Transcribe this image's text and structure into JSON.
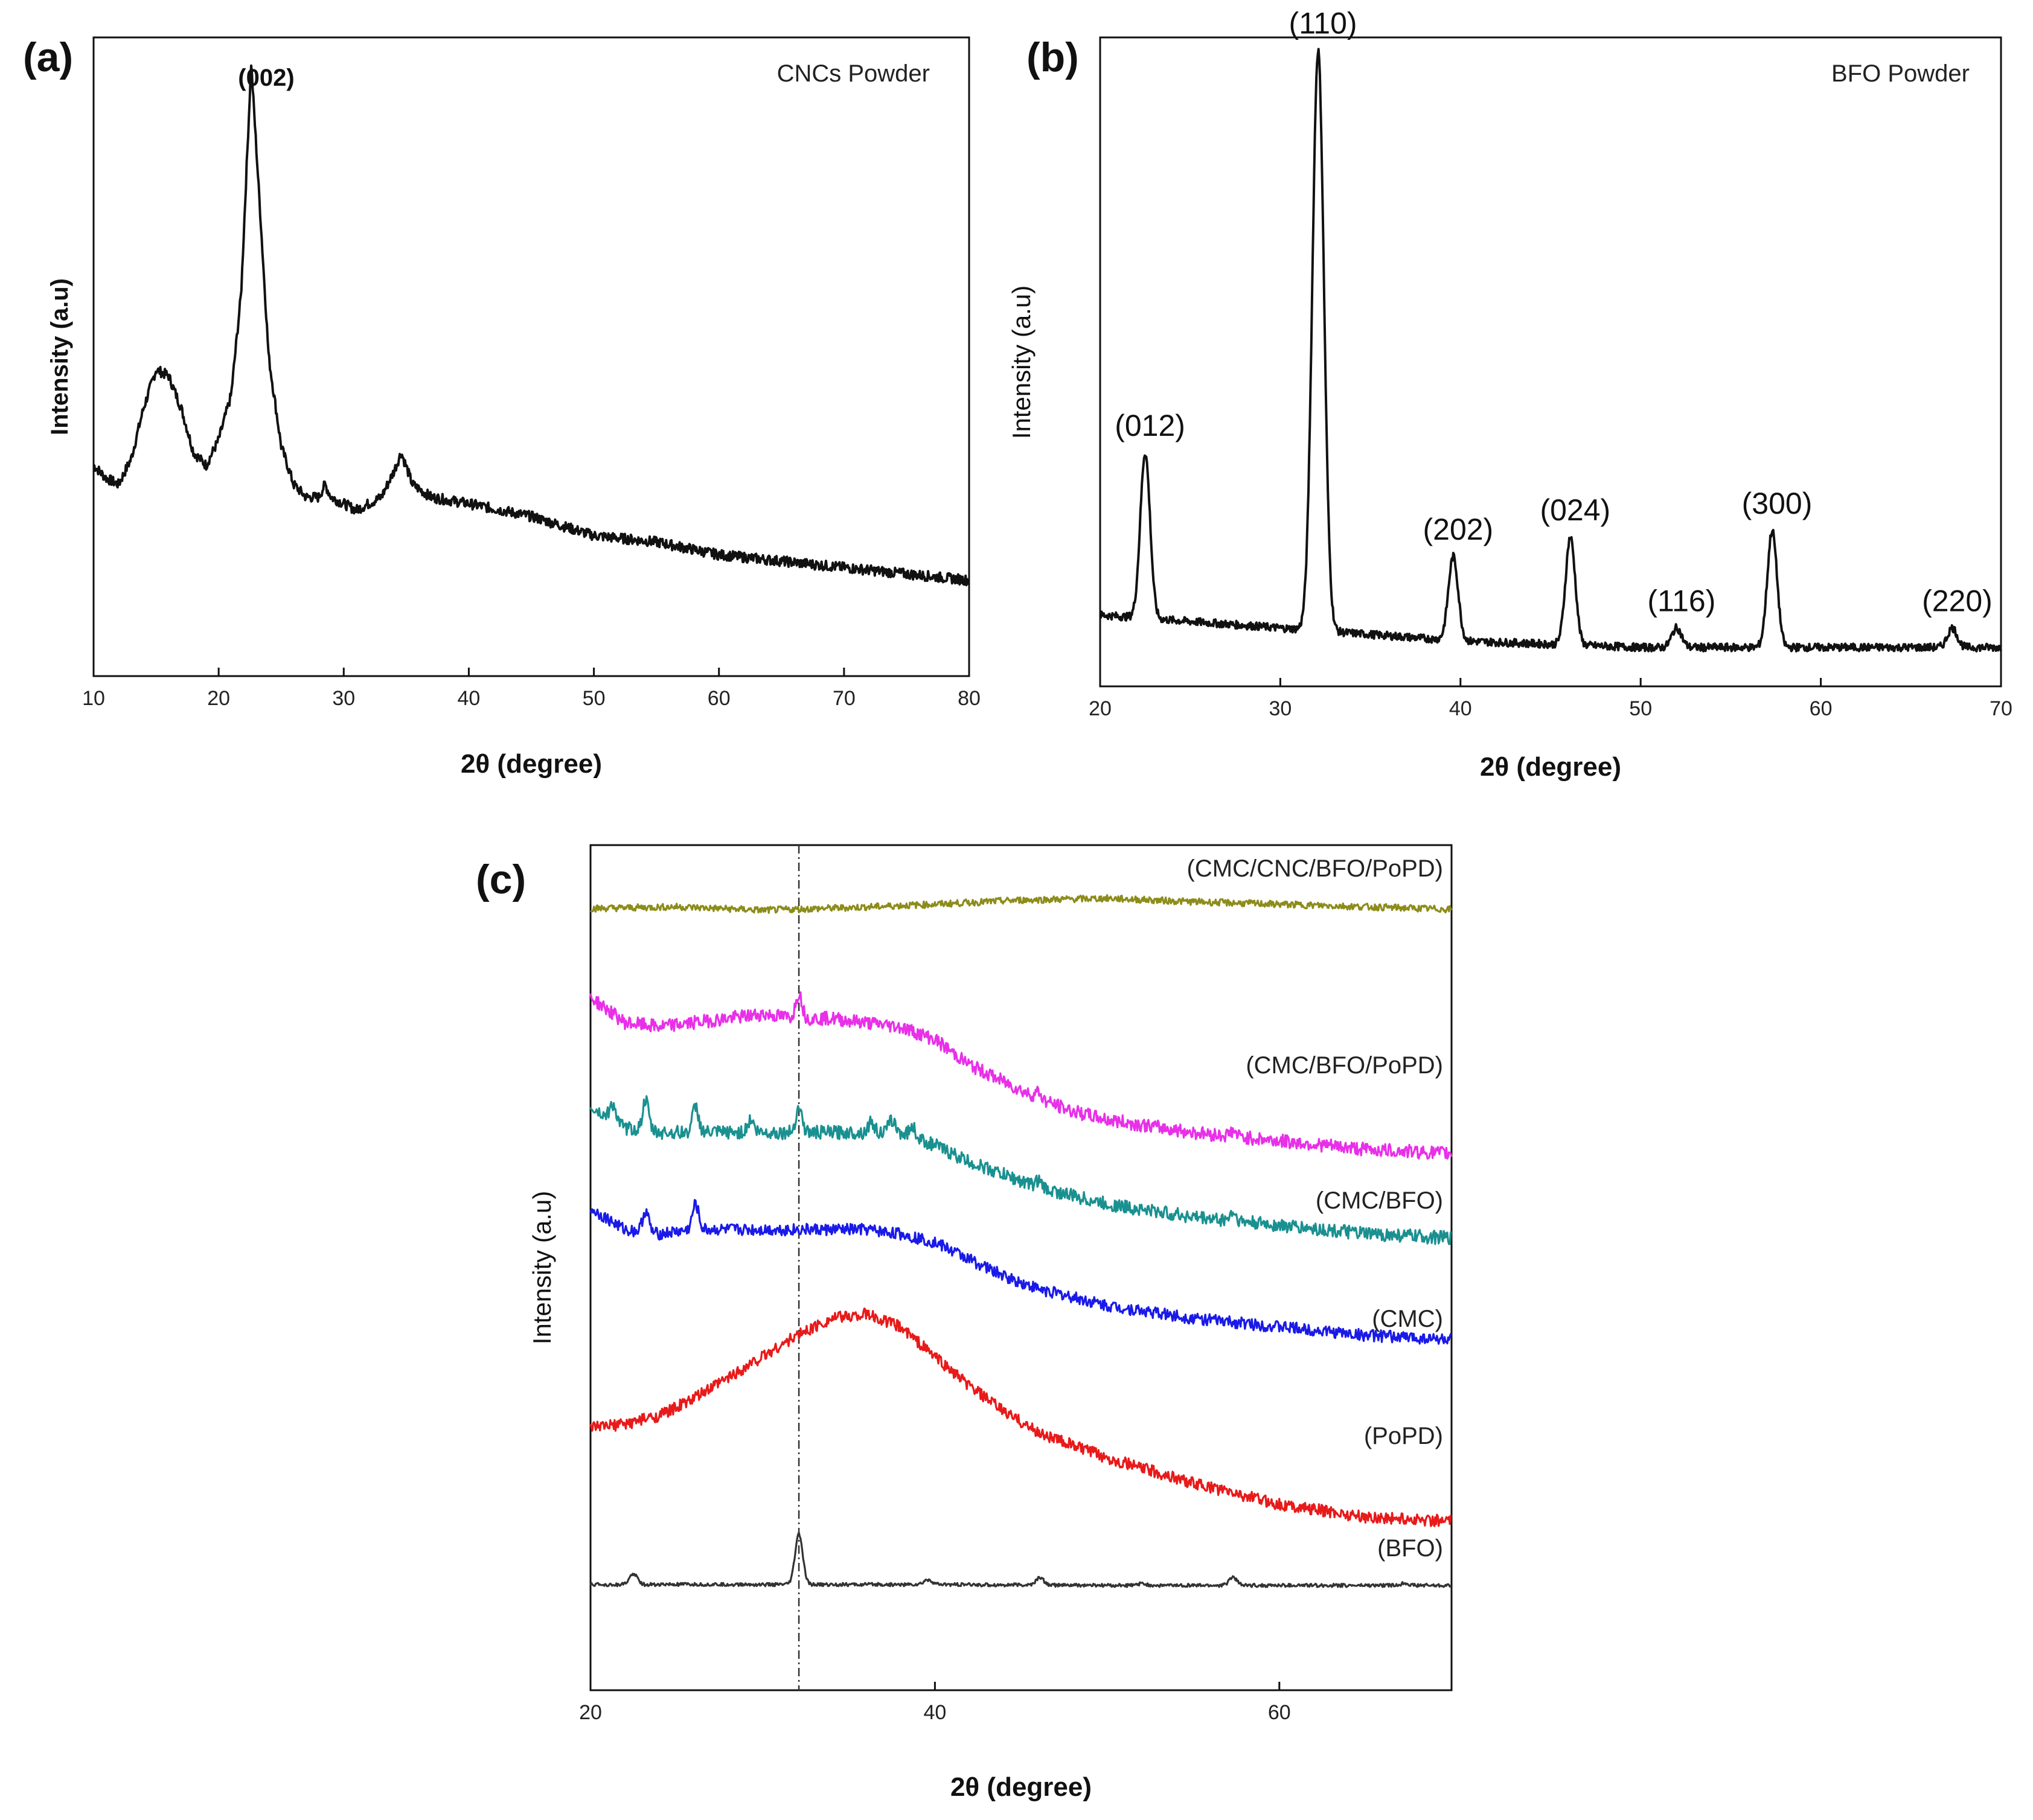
{
  "chart_data": [
    {
      "id": "a",
      "type": "line",
      "panel_label": "(a)",
      "sample_label": "CNCs Powder",
      "xlabel": "2θ (degree)",
      "ylabel": "Intensity (a.u)",
      "xlim": [
        10,
        80
      ],
      "ylim": [
        0,
        1
      ],
      "xticks": [
        10,
        20,
        30,
        40,
        50,
        60,
        70,
        80
      ],
      "color": "#111111",
      "peaks": [
        {
          "label": "(002)",
          "x": 22.6
        }
      ],
      "series": [
        {
          "name": "CNCs Powder",
          "points": [
            [
              10,
              0.33
            ],
            [
              11,
              0.31
            ],
            [
              12,
              0.3
            ],
            [
              13,
              0.34
            ],
            [
              14,
              0.42
            ],
            [
              15,
              0.48
            ],
            [
              16,
              0.47
            ],
            [
              17,
              0.42
            ],
            [
              18,
              0.35
            ],
            [
              19,
              0.33
            ],
            [
              20,
              0.37
            ],
            [
              21,
              0.44
            ],
            [
              21.8,
              0.6
            ],
            [
              22.6,
              0.96
            ],
            [
              23.4,
              0.7
            ],
            [
              24,
              0.5
            ],
            [
              25,
              0.36
            ],
            [
              26,
              0.3
            ],
            [
              27,
              0.28
            ],
            [
              28,
              0.28
            ],
            [
              28.5,
              0.3
            ],
            [
              29,
              0.28
            ],
            [
              30,
              0.27
            ],
            [
              31,
              0.26
            ],
            [
              32,
              0.27
            ],
            [
              33,
              0.28
            ],
            [
              34,
              0.32
            ],
            [
              34.6,
              0.35
            ],
            [
              35.5,
              0.3
            ],
            [
              37,
              0.28
            ],
            [
              40,
              0.27
            ],
            [
              45,
              0.25
            ],
            [
              50,
              0.22
            ],
            [
              55,
              0.21
            ],
            [
              60,
              0.19
            ],
            [
              65,
              0.18
            ],
            [
              70,
              0.17
            ],
            [
              75,
              0.16
            ],
            [
              80,
              0.15
            ]
          ]
        }
      ]
    },
    {
      "id": "b",
      "type": "line",
      "panel_label": "(b)",
      "sample_label": "BFO Powder",
      "xlabel": "2θ (degree)",
      "ylabel": "Intensity (a.u)",
      "xlim": [
        20,
        70
      ],
      "ylim": [
        0,
        1
      ],
      "xticks": [
        20,
        30,
        40,
        50,
        60,
        70
      ],
      "color": "#111111",
      "peaks": [
        {
          "label": "(012)",
          "x": 22.5,
          "y": 0.36
        },
        {
          "label": "(110)",
          "x": 32.1,
          "y": 0.98
        },
        {
          "label": "(202)",
          "x": 39.6,
          "y": 0.2
        },
        {
          "label": "(024)",
          "x": 46.1,
          "y": 0.23
        },
        {
          "label": "(116)",
          "x": 52.0,
          "y": 0.09
        },
        {
          "label": "(300)",
          "x": 57.3,
          "y": 0.24
        },
        {
          "label": "(220)",
          "x": 67.3,
          "y": 0.09
        }
      ],
      "series": [
        {
          "name": "BFO Powder",
          "baseline": [
            [
              20,
              0.11
            ],
            [
              30,
              0.09
            ],
            [
              40,
              0.07
            ],
            [
              50,
              0.06
            ],
            [
              60,
              0.06
            ],
            [
              70,
              0.06
            ]
          ]
        }
      ]
    },
    {
      "id": "c",
      "type": "line",
      "panel_label": "(c)",
      "xlabel": "2θ (degree)",
      "ylabel": "Intensity (a.u)",
      "xlim": [
        20,
        70
      ],
      "ylim": [
        0,
        1
      ],
      "xticks": [
        20,
        40,
        60
      ],
      "reference_line_x": 32.1,
      "series": [
        {
          "name": "(CMC/CNC/BFO/PoPD)",
          "color": "#8c8c1a",
          "points": [
            [
              20,
              0.925
            ],
            [
              25,
              0.927
            ],
            [
              30,
              0.923
            ],
            [
              35,
              0.926
            ],
            [
              40,
              0.93
            ],
            [
              45,
              0.935
            ],
            [
              50,
              0.937
            ],
            [
              55,
              0.933
            ],
            [
              60,
              0.93
            ],
            [
              65,
              0.927
            ],
            [
              70,
              0.924
            ]
          ],
          "spikes": []
        },
        {
          "name": "(CMC/BFO/PoPD)",
          "color": "#e830e8",
          "points": [
            [
              20,
              0.82
            ],
            [
              22,
              0.79
            ],
            [
              24,
              0.785
            ],
            [
              26,
              0.79
            ],
            [
              28,
              0.795
            ],
            [
              30,
              0.8
            ],
            [
              32,
              0.795
            ],
            [
              34,
              0.795
            ],
            [
              36,
              0.79
            ],
            [
              38,
              0.785
            ],
            [
              40,
              0.77
            ],
            [
              42,
              0.74
            ],
            [
              44,
              0.72
            ],
            [
              46,
              0.7
            ],
            [
              48,
              0.685
            ],
            [
              50,
              0.675
            ],
            [
              55,
              0.66
            ],
            [
              60,
              0.65
            ],
            [
              65,
              0.64
            ],
            [
              70,
              0.635
            ]
          ],
          "spikes": [
            [
              32.1,
              0.03
            ],
            [
              46,
              0.008
            ],
            [
              57.3,
              0.006
            ]
          ]
        },
        {
          "name": "(CMC/BFO)",
          "color": "#1a9090",
          "points": [
            [
              20,
              0.69
            ],
            [
              22,
              0.665
            ],
            [
              24,
              0.66
            ],
            [
              26,
              0.66
            ],
            [
              28,
              0.66
            ],
            [
              30,
              0.66
            ],
            [
              32,
              0.66
            ],
            [
              34,
              0.66
            ],
            [
              36,
              0.66
            ],
            [
              38,
              0.66
            ],
            [
              40,
              0.645
            ],
            [
              42,
              0.625
            ],
            [
              44,
              0.61
            ],
            [
              46,
              0.595
            ],
            [
              48,
              0.585
            ],
            [
              50,
              0.575
            ],
            [
              55,
              0.56
            ],
            [
              60,
              0.55
            ],
            [
              65,
              0.54
            ],
            [
              70,
              0.535
            ]
          ],
          "spikes": [
            [
              21.3,
              0.02
            ],
            [
              23.2,
              0.035
            ],
            [
              26.1,
              0.03
            ],
            [
              29.3,
              0.015
            ],
            [
              32.1,
              0.03
            ],
            [
              36.3,
              0.012
            ],
            [
              37.5,
              0.015
            ],
            [
              38.7,
              0.012
            ],
            [
              46,
              0.008
            ],
            [
              57.3,
              0.01
            ]
          ]
        },
        {
          "name": "(CMC)",
          "color": "#1a1ae8",
          "points": [
            [
              20,
              0.57
            ],
            [
              22,
              0.545
            ],
            [
              24,
              0.54
            ],
            [
              26,
              0.545
            ],
            [
              28,
              0.545
            ],
            [
              30,
              0.545
            ],
            [
              32,
              0.545
            ],
            [
              34,
              0.545
            ],
            [
              36,
              0.545
            ],
            [
              38,
              0.54
            ],
            [
              40,
              0.53
            ],
            [
              42,
              0.51
            ],
            [
              44,
              0.49
            ],
            [
              46,
              0.475
            ],
            [
              48,
              0.465
            ],
            [
              50,
              0.455
            ],
            [
              55,
              0.44
            ],
            [
              60,
              0.43
            ],
            [
              65,
              0.42
            ],
            [
              70,
              0.415
            ]
          ],
          "spikes": [
            [
              23.2,
              0.025
            ],
            [
              26.1,
              0.03
            ]
          ]
        },
        {
          "name": "(PoPD)",
          "color": "#e81a1a",
          "points": [
            [
              20,
              0.31
            ],
            [
              22,
              0.315
            ],
            [
              24,
              0.325
            ],
            [
              26,
              0.345
            ],
            [
              28,
              0.37
            ],
            [
              30,
              0.395
            ],
            [
              32,
              0.42
            ],
            [
              34,
              0.44
            ],
            [
              36,
              0.445
            ],
            [
              38,
              0.43
            ],
            [
              40,
              0.395
            ],
            [
              42,
              0.36
            ],
            [
              44,
              0.33
            ],
            [
              46,
              0.305
            ],
            [
              48,
              0.29
            ],
            [
              50,
              0.275
            ],
            [
              55,
              0.245
            ],
            [
              60,
              0.22
            ],
            [
              65,
              0.205
            ],
            [
              70,
              0.2
            ]
          ],
          "spikes": []
        },
        {
          "name": "(BFO)",
          "color": "#333333",
          "points": [
            [
              20,
              0.125
            ],
            [
              30,
              0.125
            ],
            [
              40,
              0.125
            ],
            [
              50,
              0.124
            ],
            [
              60,
              0.124
            ],
            [
              70,
              0.124
            ]
          ],
          "spikes": [
            [
              22.5,
              0.013
            ],
            [
              32.1,
              0.06
            ],
            [
              39.6,
              0.006
            ],
            [
              46.1,
              0.009
            ],
            [
              52.0,
              0.002
            ],
            [
              57.3,
              0.01
            ],
            [
              67.3,
              0.003
            ]
          ]
        }
      ]
    }
  ]
}
